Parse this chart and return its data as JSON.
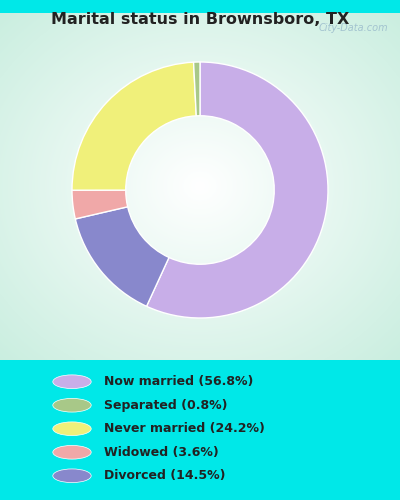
{
  "title": "Marital status in Brownsboro, TX",
  "categories": [
    "Now married",
    "Divorced",
    "Widowed",
    "Never married",
    "Separated"
  ],
  "values": [
    56.8,
    14.5,
    3.6,
    24.2,
    0.8
  ],
  "colors": [
    "#c8aee8",
    "#8888cc",
    "#f0a8a8",
    "#f0f07a",
    "#a8c888"
  ],
  "legend_order": [
    0,
    4,
    3,
    2,
    1
  ],
  "legend_labels": [
    "Now married (56.8%)",
    "Separated (0.8%)",
    "Never married (24.2%)",
    "Widowed (3.6%)",
    "Divorced (14.5%)"
  ],
  "legend_colors": [
    "#c8aee8",
    "#a8c888",
    "#f0f07a",
    "#f0a8a8",
    "#8888cc"
  ],
  "bg_outer": "#00e8e8",
  "watermark": "City-Data.com",
  "donut_width": 0.42,
  "start_angle": 90
}
